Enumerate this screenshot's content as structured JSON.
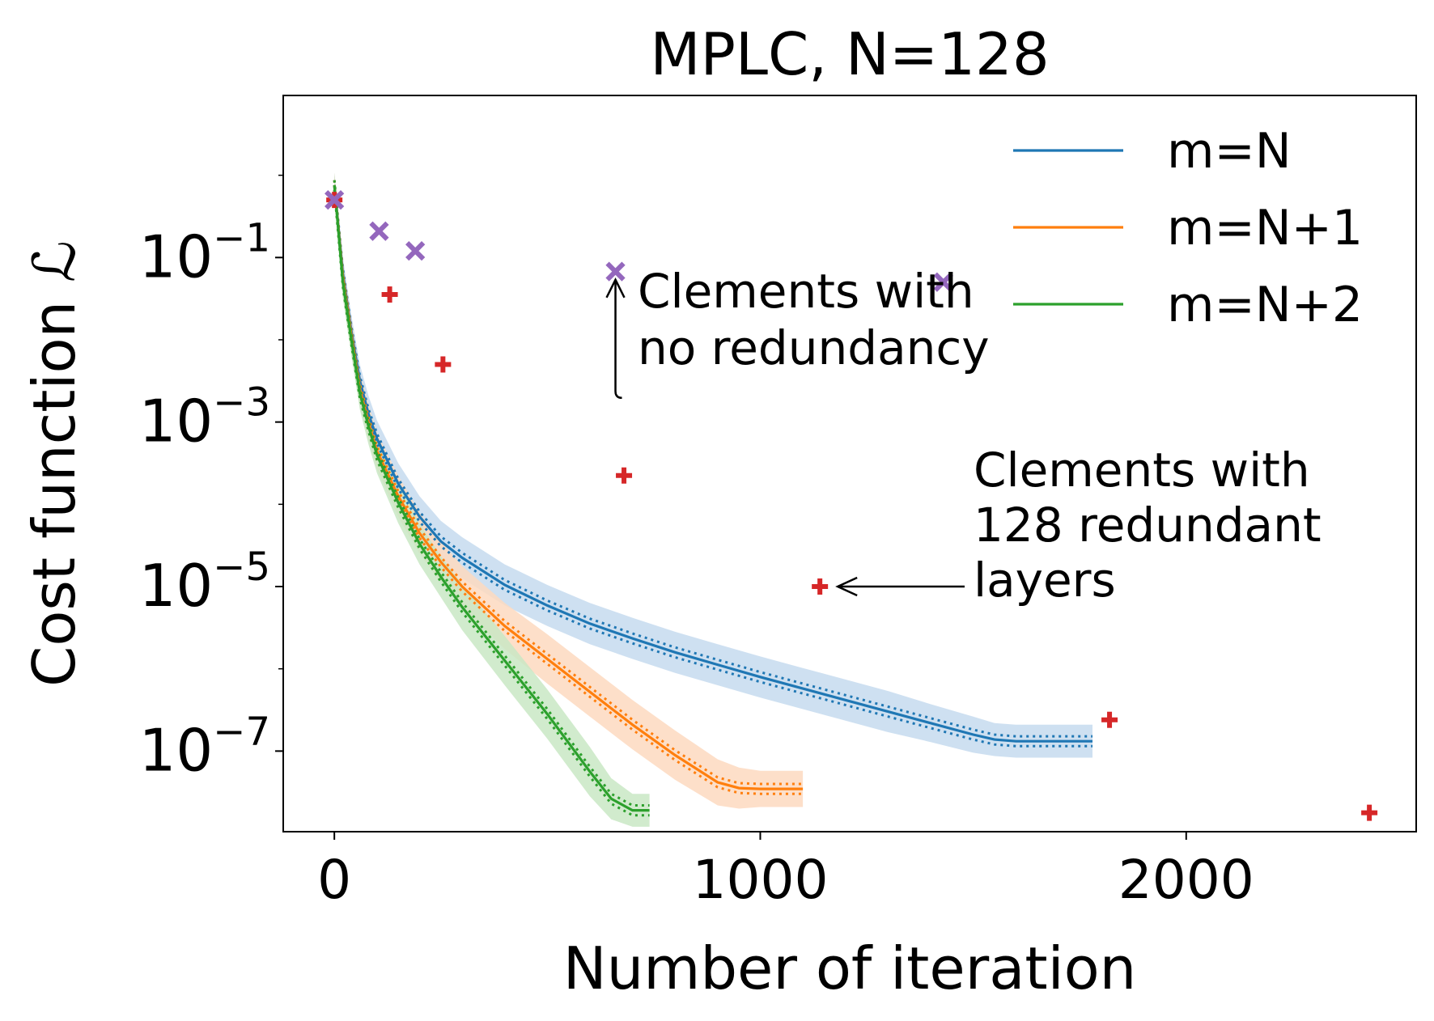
{
  "chart_data": {
    "type": "line",
    "title": "MPLC, N=128",
    "xlabel": "Number of iteration",
    "ylabel": "Cost function ℒ",
    "xlim": [
      -120,
      2540
    ],
    "ylim_log10": [
      -7.98,
      0.97
    ],
    "y_scale": "log",
    "grid": false,
    "legend_position": "top-right",
    "x_ticks": [
      {
        "value": 0,
        "label": "0"
      },
      {
        "value": 1000,
        "label": "1000"
      },
      {
        "value": 2000,
        "label": "2000"
      }
    ],
    "y_ticks": [
      {
        "value": -1,
        "base": "10",
        "exp": "−1"
      },
      {
        "value": -3,
        "base": "10",
        "exp": "−3"
      },
      {
        "value": -5,
        "base": "10",
        "exp": "−5"
      },
      {
        "value": -7,
        "base": "10",
        "exp": "−7"
      }
    ],
    "series": [
      {
        "name": "m=N",
        "color": "#1f77b4",
        "band_color": "#c6dbef",
        "x": [
          0,
          20,
          40,
          60,
          80,
          100,
          150,
          200,
          250,
          300,
          400,
          500,
          600,
          700,
          800,
          900,
          1000,
          1100,
          1200,
          1300,
          1400,
          1500,
          1550,
          1600,
          1700,
          1780
        ],
        "y": [
          -0.12,
          -1.2,
          -1.9,
          -2.5,
          -2.9,
          -3.2,
          -3.75,
          -4.15,
          -4.45,
          -4.65,
          -4.98,
          -5.23,
          -5.45,
          -5.63,
          -5.8,
          -5.95,
          -6.1,
          -6.24,
          -6.38,
          -6.52,
          -6.66,
          -6.8,
          -6.86,
          -6.88,
          -6.88,
          -6.88
        ],
        "band": [
          0.15,
          0.2,
          0.2,
          0.2,
          0.22,
          0.22,
          0.25,
          0.25,
          0.25,
          0.25,
          0.25,
          0.25,
          0.25,
          0.25,
          0.25,
          0.25,
          0.25,
          0.25,
          0.25,
          0.25,
          0.23,
          0.22,
          0.2,
          0.2,
          0.2,
          0.2
        ],
        "dotted_offset": 0.06
      },
      {
        "name": "m=N+1",
        "color": "#ff7f0e",
        "band_color": "#fdd9bf",
        "x": [
          0,
          20,
          40,
          60,
          80,
          100,
          150,
          200,
          250,
          300,
          400,
          500,
          600,
          700,
          800,
          900,
          950,
          1000,
          1100
        ],
        "y": [
          -0.12,
          -1.25,
          -1.95,
          -2.6,
          -3.0,
          -3.35,
          -3.9,
          -4.35,
          -4.7,
          -5.0,
          -5.48,
          -5.88,
          -6.28,
          -6.68,
          -7.05,
          -7.38,
          -7.45,
          -7.46,
          -7.46
        ],
        "band": [
          0.15,
          0.2,
          0.2,
          0.2,
          0.22,
          0.22,
          0.25,
          0.25,
          0.25,
          0.25,
          0.28,
          0.3,
          0.3,
          0.3,
          0.3,
          0.28,
          0.25,
          0.22,
          0.22
        ],
        "dotted_offset": 0.06
      },
      {
        "name": "m=N+2",
        "color": "#2ca02c",
        "band_color": "#c9e8c4",
        "x": [
          0,
          20,
          40,
          60,
          80,
          100,
          150,
          200,
          250,
          300,
          400,
          500,
          550,
          600,
          650,
          700,
          740
        ],
        "y": [
          -0.12,
          -1.3,
          -2.0,
          -2.65,
          -3.05,
          -3.4,
          -3.98,
          -4.48,
          -4.88,
          -5.25,
          -5.9,
          -6.55,
          -6.9,
          -7.25,
          -7.58,
          -7.72,
          -7.72
        ],
        "band": [
          0.15,
          0.2,
          0.2,
          0.2,
          0.22,
          0.22,
          0.25,
          0.25,
          0.25,
          0.28,
          0.3,
          0.3,
          0.3,
          0.3,
          0.25,
          0.2,
          0.2
        ],
        "dotted_offset": 0.06
      }
    ],
    "markers": [
      {
        "marker": "plus",
        "color": "#d62728",
        "points": [
          {
            "x": 0,
            "y": -0.3
          },
          {
            "x": 130,
            "y": -1.45
          },
          {
            "x": 255,
            "y": -2.3
          },
          {
            "x": 680,
            "y": -3.65
          },
          {
            "x": 1140,
            "y": -5.0
          },
          {
            "x": 1820,
            "y": -6.62
          },
          {
            "x": 2430,
            "y": -7.75
          }
        ]
      },
      {
        "marker": "x",
        "color": "#9467bd",
        "points": [
          {
            "x": 0,
            "y": -0.3
          },
          {
            "x": 105,
            "y": -0.68
          },
          {
            "x": 190,
            "y": -0.92
          },
          {
            "x": 660,
            "y": -1.17
          },
          {
            "x": 1430,
            "y": -1.3
          }
        ]
      }
    ],
    "annotations": [
      {
        "lines": [
          "Clements with",
          "no redundancy"
        ],
        "arrow_to": {
          "x": 660,
          "y": -1.27
        }
      },
      {
        "lines": [
          "Clements with",
          "128 redundant",
          "layers"
        ],
        "arrow_to": {
          "x": 1140,
          "y": -5.0
        }
      }
    ]
  }
}
